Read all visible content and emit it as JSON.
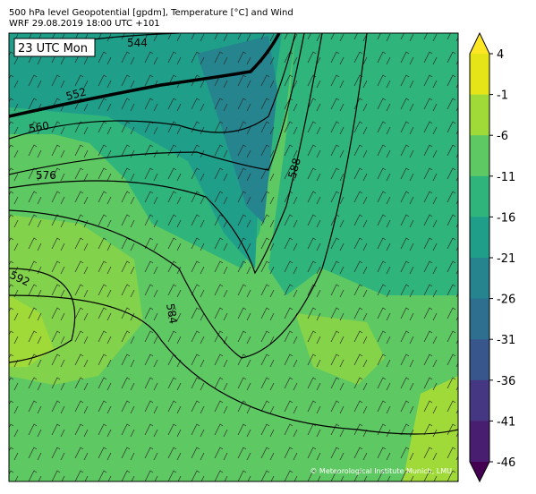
{
  "header": {
    "line1": "500 hPa level Geopotential [gpdm], Temperature [°C] and Wind",
    "line2": "WRF 29.08.2019 18:00 UTC +101"
  },
  "time_label": "23 UTC Mon",
  "contour_labels": [
    "544",
    "552",
    "560",
    "576",
    "588",
    "592",
    "584"
  ],
  "colorbar": {
    "ticks": [
      4,
      -1,
      -6,
      -11,
      -16,
      -21,
      -26,
      -31,
      -36,
      -41,
      -46
    ],
    "colors": [
      "#e5e419",
      "#a0da39",
      "#5ec962",
      "#2fb47c",
      "#1f9e89",
      "#25848e",
      "#2e6e8e",
      "#39568c",
      "#453781",
      "#481f70"
    ],
    "upper_color": "#fde725",
    "lower_color": "#440154"
  },
  "credit": "© Meteorological Institute Munich, LMU"
}
